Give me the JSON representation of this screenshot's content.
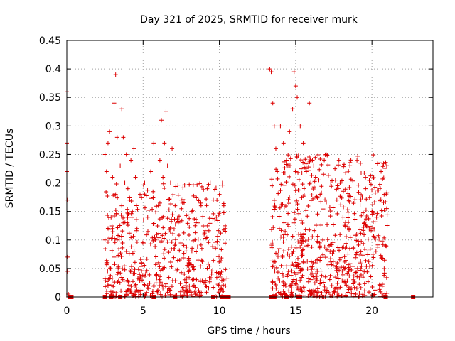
{
  "chart_data": {
    "type": "scatter",
    "title": "Day 321 of 2025, SRMTID for receiver murk",
    "xlabel": "GPS time / hours",
    "ylabel": "SRMTID / TECUs",
    "xlim": [
      0,
      24
    ],
    "ylim": [
      0,
      0.45
    ],
    "xticks": [
      "0",
      "5",
      "10",
      "15",
      "20"
    ],
    "xtick_values": [
      0,
      5,
      10,
      15,
      20
    ],
    "yticks": [
      "0",
      "0.05",
      "0.1",
      "0.15",
      "0.2",
      "0.25",
      "0.3",
      "0.35",
      "0.4",
      "0.45"
    ],
    "ytick_values": [
      0,
      0.05,
      0.1,
      0.15,
      0.2,
      0.25,
      0.3,
      0.35,
      0.4,
      0.45
    ],
    "grid": true,
    "marker": "plus",
    "color": "#dd0000",
    "zero_markers_x": [
      0.2,
      0.3,
      2.5,
      2.9,
      3.5,
      5.7,
      7.1,
      9.6,
      10.2,
      10.4,
      10.6,
      13.4,
      13.6,
      14.4,
      15.2,
      20.9,
      22.7
    ],
    "series": [
      {
        "name": "SRMTID",
        "points": [
          [
            0.0,
            0.27
          ],
          [
            0.0,
            0.36
          ],
          [
            0.0,
            0.22
          ],
          [
            0.05,
            0.17
          ],
          [
            0.05,
            0.07
          ],
          [
            0.05,
            0.045
          ],
          [
            0.1,
            0.005
          ],
          [
            0.1,
            0.0
          ],
          [
            2.5,
            0.25
          ],
          [
            2.6,
            0.22
          ],
          [
            2.7,
            0.27
          ],
          [
            2.8,
            0.29
          ],
          [
            2.9,
            0.14
          ],
          [
            2.5,
            0.1
          ],
          [
            2.6,
            0.06
          ],
          [
            2.7,
            0.02
          ],
          [
            3.0,
            0.21
          ],
          [
            3.0,
            0.12
          ],
          [
            3.1,
            0.34
          ],
          [
            3.1,
            0.07
          ],
          [
            3.2,
            0.39
          ],
          [
            3.2,
            0.18
          ],
          [
            3.3,
            0.28
          ],
          [
            3.3,
            0.1
          ],
          [
            3.5,
            0.23
          ],
          [
            3.6,
            0.33
          ],
          [
            3.6,
            0.16
          ],
          [
            3.7,
            0.28
          ],
          [
            3.8,
            0.2
          ],
          [
            3.9,
            0.25
          ],
          [
            3.9,
            0.08
          ],
          [
            4.0,
            0.19
          ],
          [
            4.2,
            0.24
          ],
          [
            4.3,
            0.15
          ],
          [
            4.4,
            0.26
          ],
          [
            4.5,
            0.21
          ],
          [
            4.6,
            0.12
          ],
          [
            4.8,
            0.18
          ],
          [
            4.9,
            0.06
          ],
          [
            5.1,
            0.2
          ],
          [
            5.3,
            0.14
          ],
          [
            5.5,
            0.22
          ],
          [
            5.7,
            0.27
          ],
          [
            5.8,
            0.1
          ],
          [
            6.0,
            0.16
          ],
          [
            6.1,
            0.24
          ],
          [
            6.2,
            0.31
          ],
          [
            6.3,
            0.21
          ],
          [
            6.4,
            0.27
          ],
          [
            6.5,
            0.325
          ],
          [
            6.6,
            0.23
          ],
          [
            6.8,
            0.2
          ],
          [
            6.9,
            0.26
          ],
          [
            7.1,
            0.16
          ],
          [
            7.3,
            0.13
          ],
          [
            7.5,
            0.17
          ],
          [
            7.7,
            0.04
          ],
          [
            7.8,
            0.02
          ],
          [
            7.9,
            0.01
          ],
          [
            8.0,
            0.06
          ],
          [
            8.2,
            0.15
          ],
          [
            8.4,
            0.1
          ],
          [
            8.6,
            0.13
          ],
          [
            8.8,
            0.16
          ],
          [
            9.0,
            0.11
          ],
          [
            9.2,
            0.19
          ],
          [
            9.4,
            0.2
          ],
          [
            9.6,
            0.17
          ],
          [
            9.8,
            0.14
          ],
          [
            10.0,
            0.18
          ],
          [
            10.2,
            0.2
          ],
          [
            10.4,
            0.12
          ],
          [
            13.3,
            0.4
          ],
          [
            13.4,
            0.395
          ],
          [
            13.5,
            0.34
          ],
          [
            13.6,
            0.3
          ],
          [
            13.7,
            0.26
          ],
          [
            13.8,
            0.22
          ],
          [
            14.0,
            0.3
          ],
          [
            14.2,
            0.27
          ],
          [
            14.4,
            0.24
          ],
          [
            14.6,
            0.29
          ],
          [
            14.8,
            0.33
          ],
          [
            14.9,
            0.395
          ],
          [
            15.0,
            0.37
          ],
          [
            15.1,
            0.35
          ],
          [
            15.3,
            0.3
          ],
          [
            15.5,
            0.27
          ],
          [
            15.7,
            0.22
          ],
          [
            15.9,
            0.34
          ],
          [
            16.1,
            0.24
          ],
          [
            16.3,
            0.21
          ],
          [
            16.6,
            0.18
          ],
          [
            17.0,
            0.25
          ],
          [
            17.3,
            0.2
          ],
          [
            17.7,
            0.17
          ],
          [
            18.1,
            0.14
          ],
          [
            18.5,
            0.12
          ],
          [
            19.0,
            0.11
          ],
          [
            19.5,
            0.13
          ],
          [
            20.0,
            0.15
          ],
          [
            20.3,
            0.14
          ],
          [
            20.6,
            0.22
          ],
          [
            20.8,
            0.18
          ],
          [
            20.9,
            0.09
          ]
        ]
      }
    ],
    "dense_clusters": [
      {
        "x": [
          2.5,
          10.5
        ],
        "y": [
          0.0,
          0.2
        ],
        "count": 520
      },
      {
        "x": [
          13.4,
          21.0
        ],
        "y": [
          0.0,
          0.25
        ],
        "count": 680
      }
    ]
  }
}
